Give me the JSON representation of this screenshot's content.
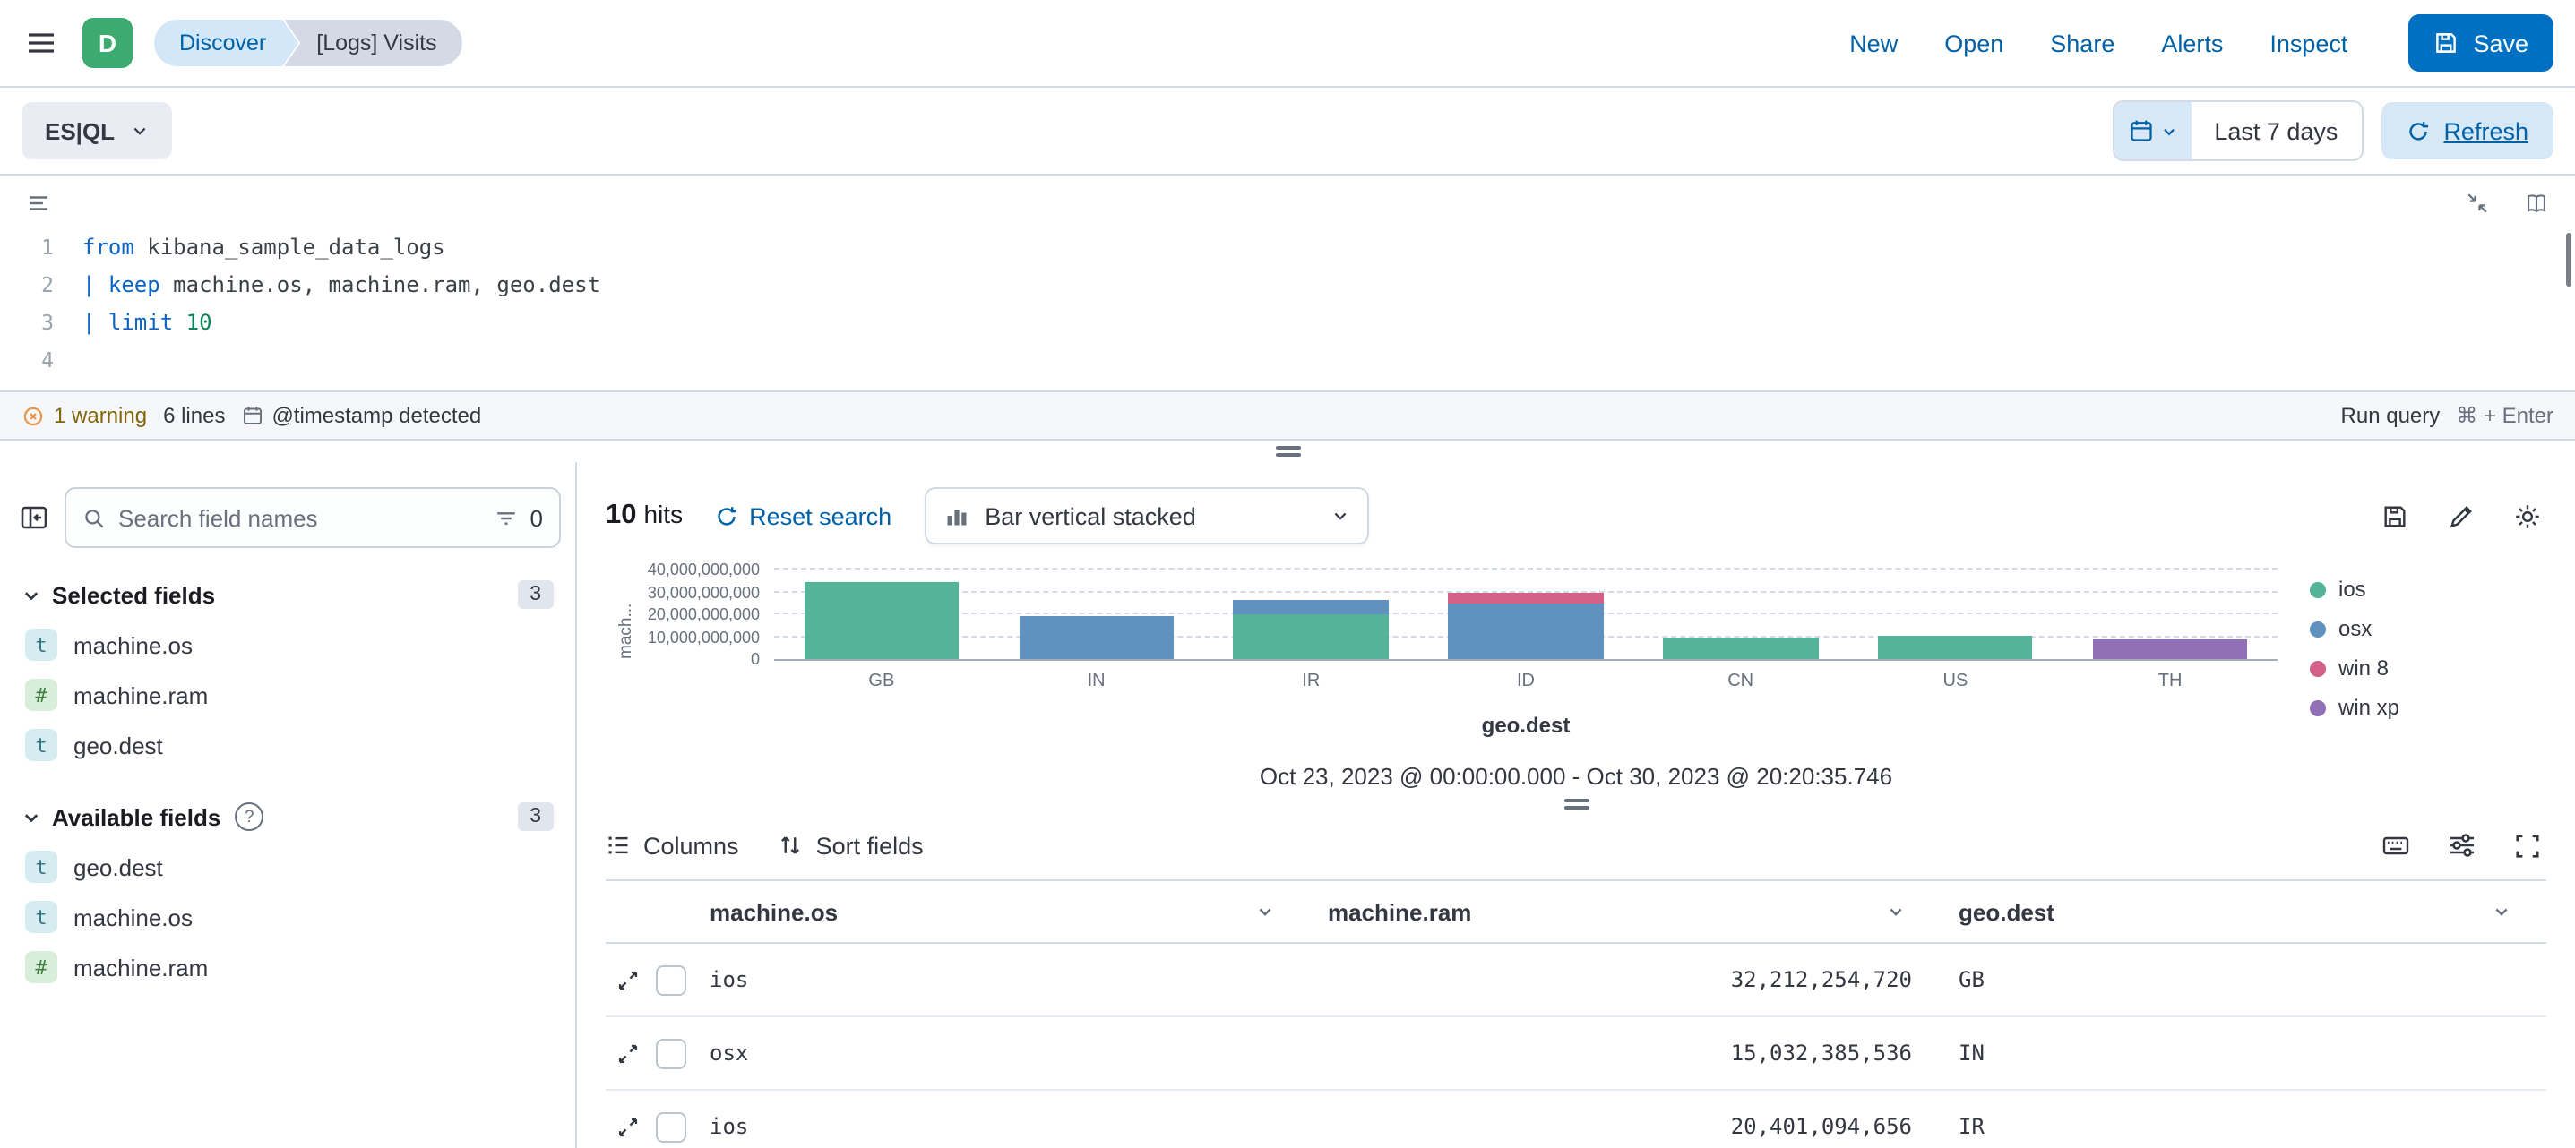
{
  "header": {
    "space_initial": "D",
    "breadcrumbs": [
      {
        "label": "Discover"
      },
      {
        "label": "[Logs] Visits"
      }
    ],
    "nav_links": [
      {
        "label": "New"
      },
      {
        "label": "Open"
      },
      {
        "label": "Share"
      },
      {
        "label": "Alerts"
      },
      {
        "label": "Inspect"
      }
    ],
    "save_button": "Save"
  },
  "query_bar": {
    "mode": "ES|QL",
    "time_range": "Last 7 days",
    "refresh": "Refresh"
  },
  "editor": {
    "lines": [
      {
        "num": "1",
        "segments": [
          {
            "text": "from",
            "cls": "kw"
          },
          {
            "text": " kibana_sample_data_logs",
            "cls": "pl"
          }
        ]
      },
      {
        "num": "2",
        "segments": [
          {
            "text": "| ",
            "cls": "kw"
          },
          {
            "text": "keep",
            "cls": "kw"
          },
          {
            "text": " machine.os, machine.ram, geo.dest",
            "cls": "pl"
          }
        ]
      },
      {
        "num": "3",
        "segments": [
          {
            "text": "| ",
            "cls": "kw"
          },
          {
            "text": "limit",
            "cls": "kw"
          },
          {
            "text": " ",
            "cls": "pl"
          },
          {
            "text": "10",
            "cls": "num"
          }
        ]
      },
      {
        "num": "4",
        "segments": []
      }
    ],
    "footer": {
      "warning": "1 warning",
      "line_count": "6 lines",
      "timestamp_note": "@timestamp detected",
      "run_query": "Run query",
      "shortcut": "⌘ + Enter"
    }
  },
  "sidebar": {
    "search_placeholder": "Search field names",
    "filter_count": "0",
    "sections": {
      "selected": {
        "title": "Selected fields",
        "count": "3",
        "items": [
          {
            "token": "t",
            "name": "machine.os"
          },
          {
            "token": "#",
            "name": "machine.ram"
          },
          {
            "token": "t",
            "name": "geo.dest"
          }
        ]
      },
      "available": {
        "title": "Available fields",
        "count": "3",
        "items": [
          {
            "token": "t",
            "name": "geo.dest"
          },
          {
            "token": "t",
            "name": "machine.os"
          },
          {
            "token": "#",
            "name": "machine.ram"
          }
        ]
      }
    }
  },
  "results_header": {
    "hits_count": "10",
    "hits_label": "hits",
    "reset_search": "Reset search",
    "chart_type": "Bar vertical stacked",
    "time_range_note": "Oct 23, 2023 @ 00:00:00.000 - Oct 30, 2023 @ 20:20:35.746"
  },
  "chart_data": {
    "type": "bar",
    "stacked": true,
    "title": "",
    "xlabel": "geo.dest",
    "ylabel": "mach...",
    "categories": [
      "GB",
      "IN",
      "IR",
      "ID",
      "CN",
      "US",
      "TH"
    ],
    "series": [
      {
        "name": "ios",
        "color": "#54B399",
        "values": [
          34500000000,
          0,
          20400000000,
          0,
          9800000000,
          10600000000,
          0
        ]
      },
      {
        "name": "osx",
        "color": "#6092C0",
        "values": [
          0,
          19500000000,
          5700000000,
          24500000000,
          0,
          0,
          0
        ]
      },
      {
        "name": "win 8",
        "color": "#D36086",
        "values": [
          0,
          0,
          0,
          4900000000,
          0,
          0,
          0
        ]
      },
      {
        "name": "win xp",
        "color": "#9170B8",
        "values": [
          0,
          0,
          0,
          0,
          0,
          0,
          9000000000
        ]
      }
    ],
    "ylim": [
      0,
      40000000000
    ],
    "yticks": [
      {
        "v": 0,
        "label": "0"
      },
      {
        "v": 10000000000,
        "label": "10,000,000,000"
      },
      {
        "v": 20000000000,
        "label": "20,000,000,000"
      },
      {
        "v": 30000000000,
        "label": "30,000,000,000"
      },
      {
        "v": 40000000000,
        "label": "40,000,000,000"
      }
    ],
    "grid": "horizontal-dashed",
    "legend_position": "right"
  },
  "table": {
    "toolbar": {
      "columns": "Columns",
      "sort_fields": "Sort fields"
    },
    "headers": [
      {
        "label": "machine.os"
      },
      {
        "label": "machine.ram"
      },
      {
        "label": "geo.dest"
      }
    ],
    "rows": [
      {
        "machine_os": "ios",
        "machine_ram": "32,212,254,720",
        "geo_dest": "GB"
      },
      {
        "machine_os": "osx",
        "machine_ram": "15,032,385,536",
        "geo_dest": "IN"
      },
      {
        "machine_os": "ios",
        "machine_ram": "20,401,094,656",
        "geo_dest": "IR"
      }
    ]
  },
  "icons": {
    "help_glyph": "?"
  },
  "colors": {
    "primary": "#0071c2",
    "link": "#0061a6",
    "warning_text": "#83650a",
    "space_avatar": "#3bab6f",
    "vis_palette": [
      "#54B399",
      "#6092C0",
      "#D36086",
      "#9170B8"
    ]
  }
}
